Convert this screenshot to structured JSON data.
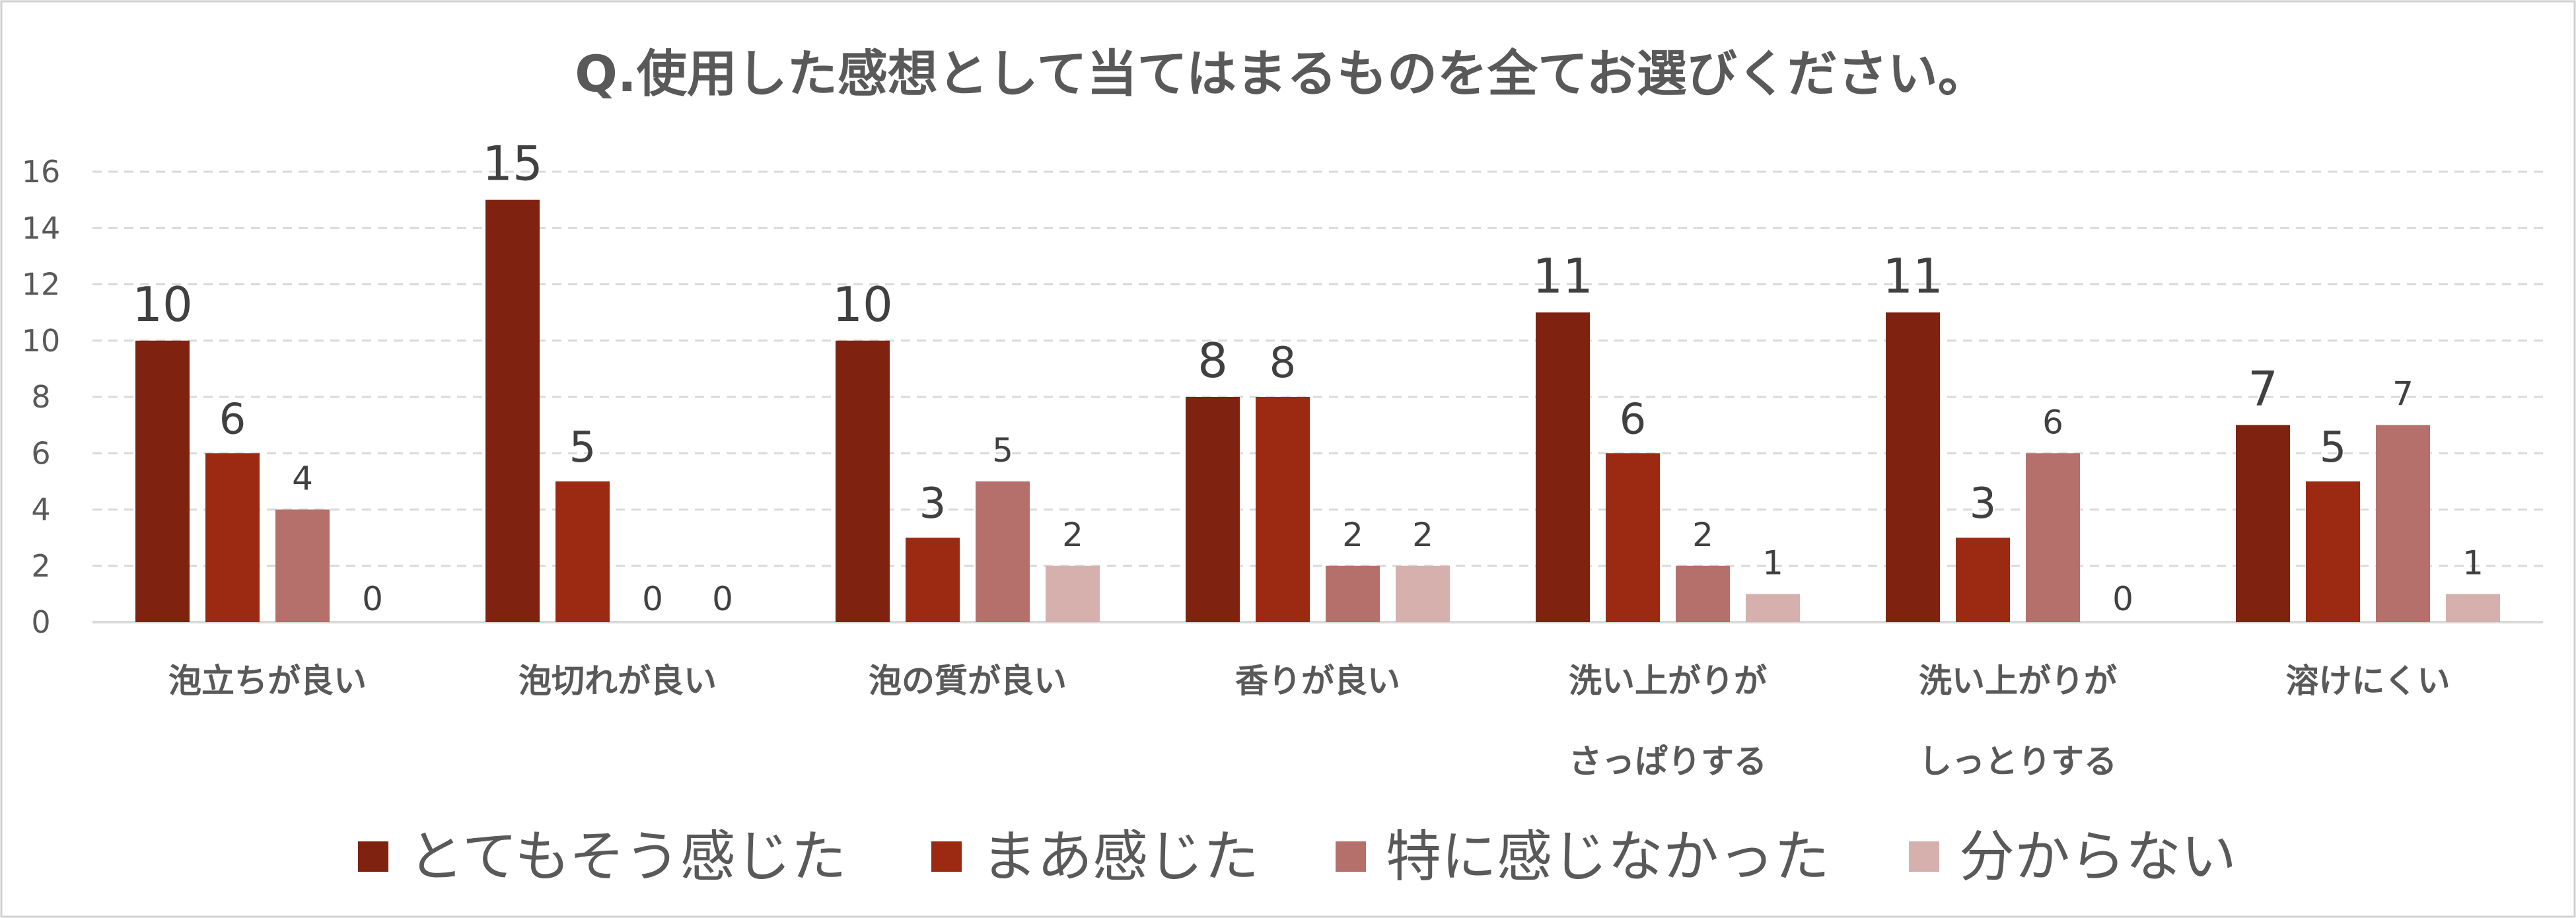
{
  "chart_data": {
    "type": "bar",
    "title": "Q.使用した感想として当てはまるものを全てお選びください。",
    "categories": [
      [
        "泡立ちが良い"
      ],
      [
        "泡切れが良い"
      ],
      [
        "泡の質が良い"
      ],
      [
        "香りが良い"
      ],
      [
        "洗い上がりが",
        "さっぱりする"
      ],
      [
        "洗い上がりが",
        "しっとりする"
      ],
      [
        "溶けにくい"
      ]
    ],
    "series": [
      {
        "name": "とてもそう感じた",
        "color": "#7f2210",
        "values": [
          10,
          15,
          10,
          8,
          11,
          11,
          7
        ]
      },
      {
        "name": "まあ感じた",
        "color": "#9c2a12",
        "values": [
          6,
          5,
          3,
          8,
          6,
          3,
          5
        ]
      },
      {
        "name": "特に感じなかった",
        "color": "#b5706b",
        "values": [
          4,
          0,
          5,
          2,
          2,
          6,
          7
        ]
      },
      {
        "name": "分からない",
        "color": "#d6b0ad",
        "values": [
          0,
          0,
          2,
          2,
          1,
          0,
          1
        ]
      }
    ],
    "yticks": [
      0,
      2,
      4,
      6,
      8,
      10,
      12,
      14,
      16
    ],
    "ylim": [
      0,
      16
    ],
    "grid": true,
    "legend": "bottom"
  }
}
